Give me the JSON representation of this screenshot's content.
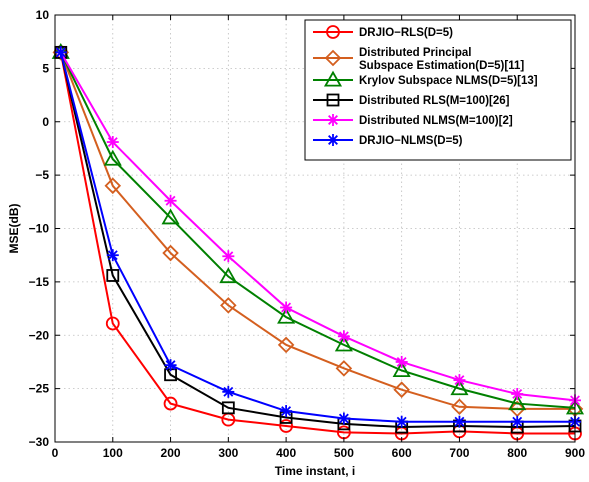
{
  "chart_data": {
    "type": "line",
    "title": "",
    "xlabel": "Time instant, i",
    "ylabel": "MSE(dB)",
    "xlim": [
      0,
      900
    ],
    "ylim": [
      -30,
      10
    ],
    "x_ticks": [
      0,
      100,
      200,
      300,
      400,
      500,
      600,
      700,
      800,
      900
    ],
    "y_ticks": [
      10,
      5,
      0,
      -5,
      -10,
      -15,
      -20,
      -25,
      -30
    ],
    "grid": true,
    "legend_position": "top-right",
    "x": [
      10,
      100,
      200,
      300,
      400,
      500,
      600,
      700,
      800,
      900
    ],
    "series": [
      {
        "name": "DRJIO−RLS(D=5)",
        "color": "#ff0000",
        "marker": "circle",
        "values": [
          6.5,
          -18.9,
          -26.4,
          -27.9,
          -28.5,
          -29.1,
          -29.2,
          -29.0,
          -29.2,
          -29.2
        ]
      },
      {
        "name": "Distributed Principal Subspace Estimation(D=5)[11]",
        "legend_lines": [
          "Distributed Principal",
          "Subspace Estimation(D=5)[11]"
        ],
        "color": "#d45f1f",
        "marker": "diamond",
        "values": [
          6.5,
          -6.0,
          -12.3,
          -17.2,
          -20.9,
          -23.1,
          -25.1,
          -26.7,
          -26.9,
          -26.9
        ]
      },
      {
        "name": "Krylov Subspace NLMS(D=5)[13]",
        "color": "#008000",
        "marker": "triangle",
        "values": [
          6.5,
          -3.5,
          -9.0,
          -14.5,
          -18.3,
          -20.9,
          -23.3,
          -25.0,
          -26.4,
          -26.8
        ]
      },
      {
        "name": "Distributed RLS(M=100)[26]",
        "color": "#000000",
        "marker": "square",
        "values": [
          6.5,
          -14.4,
          -23.7,
          -26.8,
          -27.7,
          -28.3,
          -28.6,
          -28.5,
          -28.6,
          -28.5
        ]
      },
      {
        "name": "Distributed NLMS(M=100)[2]",
        "color": "#ff00ff",
        "marker": "star",
        "values": [
          6.5,
          -1.9,
          -7.4,
          -12.6,
          -17.4,
          -20.1,
          -22.5,
          -24.2,
          -25.5,
          -26.1
        ]
      },
      {
        "name": "DRJIO−NLMS(D=5)",
        "color": "#0000ff",
        "marker": "asterisk",
        "values": [
          6.5,
          -12.5,
          -22.8,
          -25.3,
          -27.1,
          -27.8,
          -28.1,
          -28.1,
          -28.1,
          -28.1
        ]
      }
    ]
  }
}
